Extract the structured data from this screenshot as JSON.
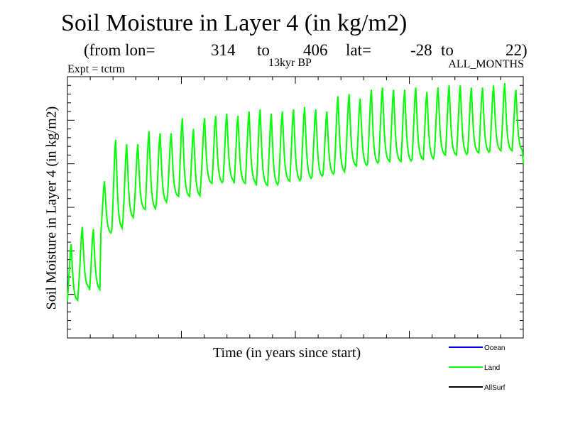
{
  "header": {
    "title": "Soil Moisture in Layer 4 (in kg/m2)",
    "from_lon_label": "(from lon=",
    "lon_start": "314",
    "to_label_1": "to",
    "lon_end": "406",
    "lat_label": "lat=",
    "lat_start": "-28",
    "to_label_2": "to",
    "lat_end": "22)",
    "experiment": "Expt = tctrm",
    "period": "13kyr BP",
    "months": "ALL_MONTHS"
  },
  "colors": {
    "ocean": "#0000ff",
    "land": "#00ff00",
    "allsurf": "#000000"
  },
  "chart_data": {
    "type": "line",
    "title": "Soil Moisture in Layer 4 (in kg/m2)",
    "xlabel": "Time (in years since start)",
    "ylabel": "Soil Moisture in Layer 4 (in kg/m2)",
    "xlim": [
      0,
      41
    ],
    "ylim": [
      0,
      120
    ],
    "grid": false,
    "legend_position": "bottom-right",
    "note": "Axis tick values are not printed in the original figure; y values are estimated in relative units of the unlabeled axis (bottom = 0, top = 120). One seasonal cycle per year, monthly samples.",
    "legend": [
      "Ocean",
      "Land",
      "AllSurf"
    ],
    "series": [
      {
        "name": "Ocean",
        "color": "#0000ff",
        "values": []
      },
      {
        "name": "Land",
        "color": "#00ff00",
        "annual_peaks": [
          43,
          51,
          50,
          72,
          91,
          89,
          89,
          95,
          94,
          94,
          101,
          96,
          101,
          102,
          103,
          102,
          104,
          105,
          103,
          104,
          105,
          106,
          105,
          104,
          111,
          112,
          110,
          114,
          115,
          114,
          114,
          115,
          113,
          115,
          116,
          116,
          115,
          115,
          116,
          117,
          114,
          113
        ],
        "annual_troughs": [
          17,
          23,
          22,
          48,
          50,
          55,
          59,
          59,
          62,
          65,
          65,
          65,
          71,
          71,
          72,
          71,
          71,
          70,
          70,
          72,
          72,
          73,
          74,
          75,
          76,
          79,
          79,
          80,
          81,
          81,
          81,
          82,
          82,
          84,
          84,
          84,
          85,
          85,
          86,
          86,
          86,
          80
        ]
      },
      {
        "name": "AllSurf",
        "color": "#000000",
        "values": []
      }
    ]
  }
}
